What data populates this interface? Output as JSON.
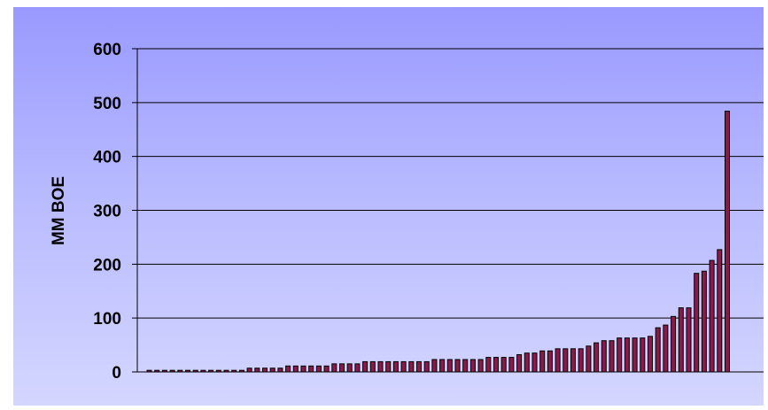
{
  "chart_data": {
    "type": "bar",
    "title": "",
    "xlabel": "",
    "ylabel": "MM BOE",
    "ylim": [
      0,
      600
    ],
    "yticks": [
      0,
      100,
      200,
      300,
      400,
      500,
      600
    ],
    "grid": true,
    "legend": "none",
    "bar_color": "#8b1a4a",
    "values": [
      3,
      3,
      3,
      3,
      3,
      3,
      3,
      3,
      3,
      3,
      3,
      3,
      3,
      7,
      7,
      7,
      7,
      7,
      11,
      11,
      11,
      11,
      11,
      11,
      15,
      15,
      15,
      15,
      19,
      19,
      19,
      19,
      19,
      19,
      19,
      19,
      19,
      23,
      23,
      23,
      23,
      23,
      23,
      23,
      27,
      27,
      27,
      27,
      32,
      35,
      35,
      39,
      39,
      43,
      43,
      43,
      43,
      48,
      54,
      58,
      58,
      63,
      63,
      63,
      63,
      66,
      82,
      87,
      103,
      119,
      119,
      183,
      187,
      207,
      227,
      484
    ]
  }
}
